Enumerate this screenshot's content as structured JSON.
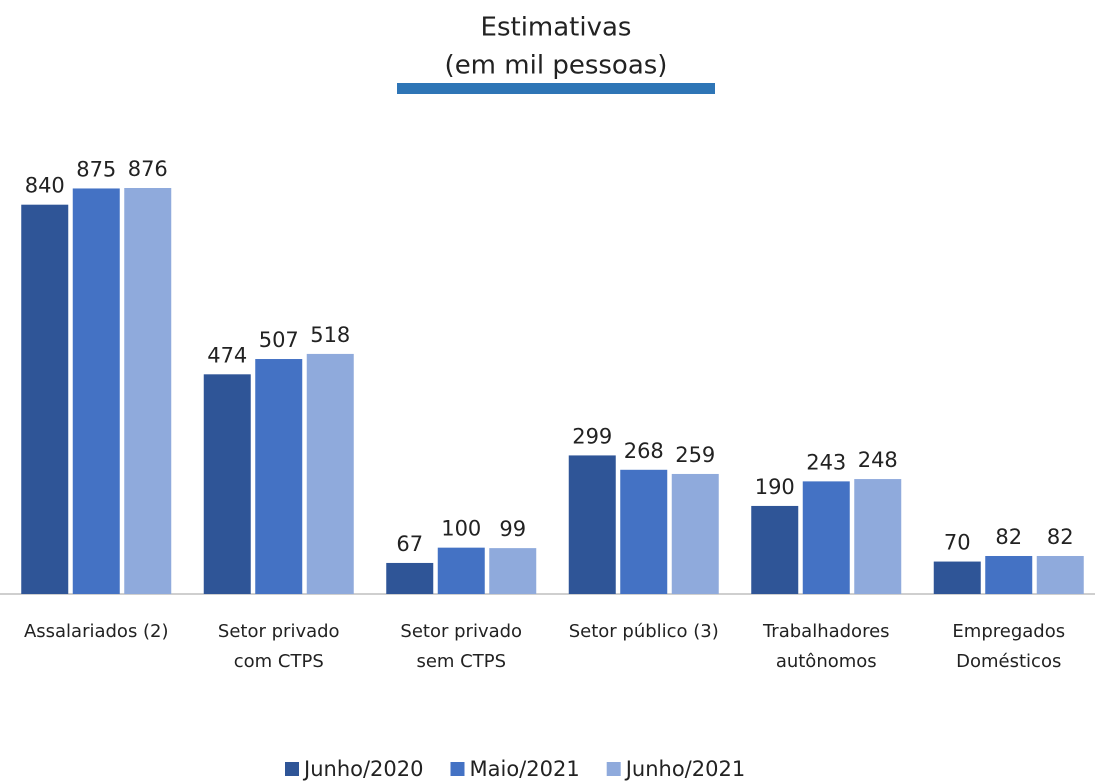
{
  "chart_data": {
    "type": "bar",
    "title": "Estimativas",
    "subtitle": "(em mil pessoas)",
    "categories": [
      "Assalariados (2)",
      "Setor privado\ncom CTPS",
      "Setor privado\nsem CTPS",
      "Setor público (3)",
      "Trabalhadores\nautônomos",
      "Empregados\nDomésticos"
    ],
    "series": [
      {
        "name": "Junho/2020",
        "color": "#2f5597",
        "values": [
          840,
          474,
          67,
          299,
          190,
          70
        ]
      },
      {
        "name": "Maio/2021",
        "color": "#4472c4",
        "values": [
          875,
          507,
          100,
          268,
          243,
          82
        ]
      },
      {
        "name": "Junho/2021",
        "color": "#8faadc",
        "values": [
          876,
          518,
          99,
          259,
          248,
          82
        ]
      }
    ],
    "legend": "bottom"
  }
}
